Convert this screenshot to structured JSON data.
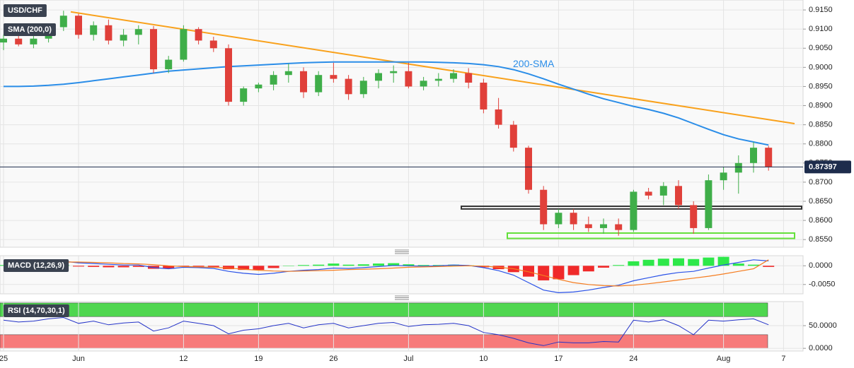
{
  "chart_data": [
    {
      "type": "candlestick",
      "title": "USD/CHF",
      "categories": [
        "25",
        null,
        null,
        null,
        null,
        "Jun",
        null,
        null,
        null,
        null,
        null,
        null,
        "12",
        null,
        null,
        null,
        null,
        "19",
        null,
        null,
        null,
        null,
        "26",
        null,
        null,
        null,
        null,
        "Jul",
        null,
        null,
        null,
        null,
        "10",
        null,
        null,
        null,
        null,
        "17",
        null,
        null,
        null,
        null,
        "24",
        null,
        null,
        null,
        null,
        null,
        "Aug",
        null,
        null,
        null,
        "7"
      ],
      "open": [
        0.9065,
        0.9075,
        0.906,
        0.9075,
        0.9105,
        0.9135,
        0.9085,
        0.911,
        0.907,
        0.9085,
        0.91,
        0.8995,
        0.902,
        0.91,
        0.907,
        0.905,
        0.891,
        0.8945,
        0.8955,
        0.898,
        0.899,
        0.8935,
        0.898,
        0.897,
        0.893,
        0.8965,
        0.8985,
        0.899,
        0.895,
        0.8965,
        0.897,
        0.8985,
        0.896,
        0.889,
        0.885,
        0.879,
        0.868,
        0.859,
        0.862,
        0.859,
        0.858,
        0.859,
        0.8575,
        0.8675,
        0.8665,
        0.869,
        0.864,
        0.858,
        0.8705,
        0.8725,
        0.875,
        0.879,
        null
      ],
      "high": [
        0.9085,
        0.909,
        0.9085,
        0.9115,
        0.9148,
        0.914,
        0.912,
        0.9125,
        0.91,
        0.911,
        0.9108,
        0.903,
        0.911,
        0.9105,
        0.908,
        0.906,
        0.895,
        0.896,
        0.899,
        0.901,
        0.9,
        0.899,
        0.9012,
        0.898,
        0.8975,
        0.8995,
        0.9005,
        0.9012,
        0.8975,
        0.8985,
        0.8995,
        0.8998,
        0.897,
        0.892,
        0.886,
        0.8795,
        0.869,
        0.863,
        0.863,
        0.861,
        0.8605,
        0.8605,
        0.868,
        0.8685,
        0.87,
        0.8705,
        0.865,
        0.872,
        0.874,
        0.877,
        0.8805,
        0.8795,
        null
      ],
      "low": [
        0.9045,
        0.9055,
        0.905,
        0.9065,
        0.9095,
        0.9075,
        0.907,
        0.906,
        0.9055,
        0.906,
        0.8985,
        0.8985,
        0.9015,
        0.906,
        0.904,
        0.89,
        0.89,
        0.8935,
        0.894,
        0.896,
        0.892,
        0.8925,
        0.896,
        0.8915,
        0.892,
        0.8945,
        0.896,
        0.8945,
        0.894,
        0.895,
        0.896,
        0.8945,
        0.888,
        0.884,
        0.878,
        0.867,
        0.8575,
        0.858,
        0.8575,
        0.857,
        0.8565,
        0.856,
        0.857,
        0.8655,
        0.864,
        0.863,
        0.8565,
        0.8575,
        0.868,
        0.867,
        0.8725,
        0.873,
        null
      ],
      "close": [
        0.9075,
        0.906,
        0.9075,
        0.9105,
        0.9135,
        0.9085,
        0.911,
        0.907,
        0.9085,
        0.91,
        0.8995,
        0.902,
        0.91,
        0.907,
        0.905,
        0.891,
        0.8945,
        0.8955,
        0.898,
        0.899,
        0.8935,
        0.898,
        0.897,
        0.893,
        0.8965,
        0.8985,
        0.899,
        0.895,
        0.8965,
        0.897,
        0.8985,
        0.896,
        0.889,
        0.885,
        0.879,
        0.868,
        0.859,
        0.862,
        0.859,
        0.858,
        0.859,
        0.8575,
        0.8675,
        0.8665,
        0.869,
        0.864,
        0.858,
        0.8705,
        0.8725,
        0.875,
        0.879,
        0.87397,
        null
      ],
      "up_color": "#3fae49",
      "down_color": "#e0403a",
      "series": [
        {
          "name": "SMA (200,0)",
          "label": "200-SMA",
          "color": "#2a8de8",
          "values": [
            0.895,
            0.895,
            0.8951,
            0.8953,
            0.8956,
            0.896,
            0.8965,
            0.897,
            0.8975,
            0.898,
            0.8985,
            0.899,
            0.8993,
            0.8996,
            0.8999,
            0.9002,
            0.9004,
            0.9006,
            0.9008,
            0.901,
            0.9012,
            0.9013,
            0.9014,
            0.9014,
            0.9014,
            0.9014,
            0.9014,
            0.9014,
            0.9014,
            0.9013,
            0.9012,
            0.901,
            0.9007,
            0.9002,
            0.8994,
            0.8983,
            0.897,
            0.8956,
            0.8943,
            0.893,
            0.8918,
            0.8908,
            0.8898,
            0.889,
            0.888,
            0.8868,
            0.8853,
            0.8838,
            0.8824,
            0.8813,
            0.8805,
            0.8797,
            null
          ]
        }
      ],
      "trendline": {
        "color": "#f9a11b",
        "values": [
          0.9145,
          0.8853
        ]
      },
      "levels": [
        {
          "color": "#333333",
          "values": [
            0.8637,
            0.863
          ]
        },
        {
          "color": "#63e03a",
          "values": [
            0.8567,
            0.8553
          ]
        }
      ],
      "ylim": [
        0.853,
        0.9176
      ],
      "yticks": [
        {
          "value": 0.915,
          "label": "0.9150"
        },
        {
          "value": 0.91,
          "label": "0.9100"
        },
        {
          "value": 0.905,
          "label": "0.9050"
        },
        {
          "value": 0.9,
          "label": "0.9000"
        },
        {
          "value": 0.895,
          "label": "0.8950"
        },
        {
          "value": 0.89,
          "label": "0.8900"
        },
        {
          "value": 0.885,
          "label": "0.8850"
        },
        {
          "value": 0.88,
          "label": "0.8800"
        },
        {
          "value": 0.875,
          "label": "0.8750"
        },
        {
          "value": 0.87,
          "label": "0.8700"
        },
        {
          "value": 0.865,
          "label": "0.8650"
        },
        {
          "value": 0.86,
          "label": "0.8600"
        },
        {
          "value": 0.855,
          "label": "0.8550"
        }
      ],
      "grid": true
    },
    {
      "type": "macd",
      "title": "MACD (12,26,9)",
      "series": [
        {
          "color": "#2a52e8",
          "values": [
            0.0012,
            0.001,
            0.0008,
            0.0009,
            0.0012,
            0.0008,
            0.0006,
            0.0004,
            0.0002,
            0.0002,
            -0.0005,
            -0.0008,
            -0.0004,
            -0.0005,
            -0.0007,
            -0.0015,
            -0.002,
            -0.0023,
            -0.002,
            -0.0015,
            -0.0012,
            -0.001,
            -0.0006,
            -0.0007,
            -0.0005,
            -0.0002,
            0.0001,
            0.0,
            -0.0001,
            0.0,
            0.0002,
            0.0001,
            -0.0005,
            -0.0013,
            -0.0025,
            -0.0045,
            -0.0065,
            -0.0072,
            -0.007,
            -0.0065,
            -0.0058,
            -0.0052,
            -0.004,
            -0.0032,
            -0.0024,
            -0.0018,
            -0.0015,
            -0.0006,
            0.0002,
            0.0009,
            0.0016,
            0.0013,
            null
          ]
        },
        {
          "color": "#f57c1f",
          "values": [
            0.001,
            0.001,
            0.001,
            0.0009,
            0.001,
            0.001,
            0.0009,
            0.0008,
            0.0006,
            0.0005,
            0.0003,
            0.0,
            -0.0002,
            -0.0003,
            -0.0004,
            -0.0006,
            -0.0009,
            -0.0012,
            -0.0014,
            -0.0015,
            -0.0014,
            -0.0013,
            -0.0012,
            -0.001,
            -0.0009,
            -0.0008,
            -0.0006,
            -0.0004,
            -0.0003,
            -0.0002,
            -0.0001,
            0.0,
            -0.0001,
            -0.0004,
            -0.0008,
            -0.0016,
            -0.0026,
            -0.0036,
            -0.0045,
            -0.005,
            -0.0053,
            -0.0054,
            -0.0052,
            -0.0048,
            -0.0043,
            -0.0038,
            -0.0033,
            -0.0028,
            -0.0022,
            -0.0015,
            -0.0008,
            0.0016,
            null
          ]
        }
      ],
      "histogram": {
        "up_color": "#2ee84a",
        "down_color": "#f02a2a",
        "values": [
          0.0002,
          0,
          -0.0002,
          0,
          0.0002,
          -0.0002,
          -0.0003,
          -0.0004,
          -0.0004,
          -0.0003,
          -0.0008,
          -0.0008,
          -0.0002,
          -0.0002,
          -0.0003,
          -0.0009,
          -0.0011,
          -0.0011,
          -0.0006,
          0,
          0.0002,
          0.0003,
          0.0006,
          0.0003,
          0.0004,
          0.0006,
          0.0007,
          0.0004,
          0.0002,
          0.0002,
          0.0003,
          0.0001,
          -0.0004,
          -0.0009,
          -0.0017,
          -0.0029,
          -0.0039,
          -0.0036,
          -0.0025,
          -0.0015,
          -0.0005,
          0.0002,
          0.0012,
          0.0016,
          0.0019,
          0.002,
          0.0018,
          0.0022,
          0.0024,
          0.0006,
          0.0003,
          -0.0003,
          null
        ]
      },
      "ylim": [
        -0.0075,
        0.0027
      ],
      "yticks": [
        {
          "value": 0,
          "label": "0.0000"
        },
        {
          "value": -0.005,
          "label": "-0.0050"
        }
      ],
      "grid": true
    },
    {
      "type": "rsi",
      "title": "RSI (14,70,30,1)",
      "series": [
        {
          "color": "#2433c8",
          "values": [
            62,
            58,
            60,
            65,
            68,
            55,
            60,
            52,
            56,
            58,
            38,
            45,
            60,
            55,
            50,
            32,
            40,
            43,
            50,
            55,
            45,
            52,
            55,
            45,
            50,
            55,
            57,
            48,
            52,
            53,
            55,
            50,
            35,
            30,
            22,
            12,
            6,
            14,
            12,
            12,
            15,
            14,
            62,
            58,
            63,
            50,
            30,
            62,
            60,
            63,
            65,
            52,
            null
          ]
        }
      ],
      "zones": [
        {
          "values": [
            70,
            100
          ],
          "color": "#4fd64f"
        },
        {
          "values": [
            0,
            30
          ],
          "color": "#f77a7a"
        }
      ],
      "ylim": [
        -6,
        103
      ],
      "yticks": [
        {
          "value": 50,
          "label": "50.0000"
        },
        {
          "value": 0,
          "label": "0.0000"
        }
      ],
      "grid": true
    }
  ]
}
